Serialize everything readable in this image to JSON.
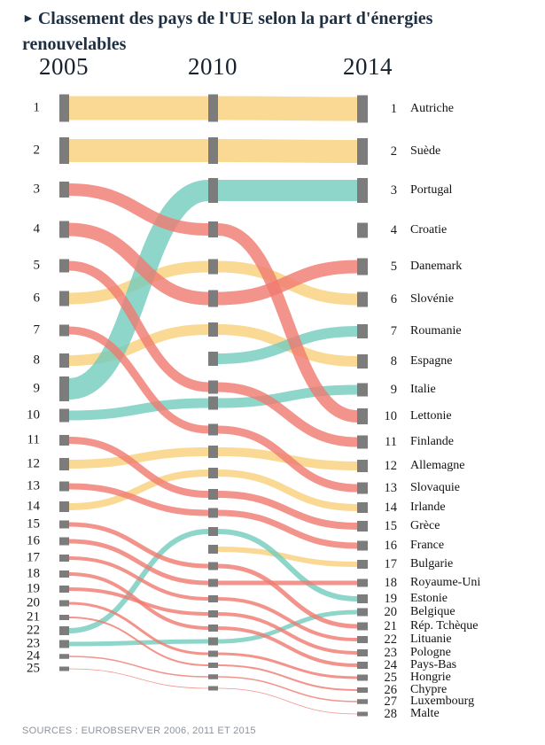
{
  "title": {
    "bullet": "►",
    "text": "Classement des pays de l'UE selon la part d'énergies renouvelables"
  },
  "source": "SOURCES : EUROBSERV'ER 2006, 2011 ET 2015",
  "chart_data": {
    "type": "bump-sankey",
    "columns": [
      {
        "year": "2005",
        "countries_ranked": 25
      },
      {
        "year": "2010",
        "countries_ranked": 27
      },
      {
        "year": "2014",
        "countries_ranked": 28
      }
    ],
    "rank_labels_2005": [
      1,
      2,
      3,
      4,
      5,
      6,
      7,
      8,
      9,
      10,
      11,
      12,
      13,
      14,
      15,
      16,
      17,
      18,
      19,
      20,
      21,
      22,
      23,
      24,
      25
    ],
    "rank_labels_2014": [
      1,
      2,
      3,
      4,
      5,
      6,
      7,
      8,
      9,
      10,
      11,
      12,
      13,
      14,
      15,
      16,
      17,
      18,
      19,
      20,
      21,
      22,
      23,
      24,
      25,
      26,
      27,
      28
    ],
    "colors": {
      "yellow": "#f7cf79",
      "red": "#f0796f",
      "teal": "#72cabd",
      "node": "#7c7c7c"
    },
    "legend_semantics": {
      "yellow": "stable",
      "red": "decline",
      "teal": "rise"
    },
    "countries": [
      {
        "rank_2014": 1,
        "name": "Autriche",
        "rank_2005": 1,
        "rank_2010": 1,
        "color": "yellow",
        "weight": 27
      },
      {
        "rank_2014": 2,
        "name": "Suède",
        "rank_2005": 2,
        "rank_2010": 2,
        "color": "yellow",
        "weight": 26
      },
      {
        "rank_2014": 3,
        "name": "Portugal",
        "rank_2005": 9,
        "rank_2010": 3,
        "color": "teal",
        "weight": 24
      },
      {
        "rank_2014": 4,
        "name": "Croatie",
        "rank_2005": null,
        "rank_2010": null,
        "color": "none",
        "weight": 13
      },
      {
        "rank_2014": 5,
        "name": "Danemark",
        "rank_2005": 4,
        "rank_2010": 6,
        "color": "red",
        "weight": 15
      },
      {
        "rank_2014": 6,
        "name": "Slovénie",
        "rank_2005": 6,
        "rank_2010": 5,
        "color": "yellow",
        "weight": 13
      },
      {
        "rank_2014": 7,
        "name": "Roumanie",
        "rank_2005": null,
        "rank_2010": 8,
        "color": "teal",
        "weight": 12
      },
      {
        "rank_2014": 8,
        "name": "Espagne",
        "rank_2005": 8,
        "rank_2010": 7,
        "color": "yellow",
        "weight": 12
      },
      {
        "rank_2014": 9,
        "name": "Italie",
        "rank_2005": 10,
        "rank_2010": 10,
        "color": "teal",
        "weight": 11
      },
      {
        "rank_2014": 10,
        "name": "Lettonie",
        "rank_2005": 3,
        "rank_2010": 4,
        "color": "red",
        "weight": 14
      },
      {
        "rank_2014": 11,
        "name": "Finlande",
        "rank_2005": 5,
        "rank_2010": 9,
        "color": "red",
        "weight": 11
      },
      {
        "rank_2014": 12,
        "name": "Allemagne",
        "rank_2005": 12,
        "rank_2010": 12,
        "color": "yellow",
        "weight": 10
      },
      {
        "rank_2014": 13,
        "name": "Slovaquie",
        "rank_2005": 7,
        "rank_2010": 11,
        "color": "red",
        "weight": 9
      },
      {
        "rank_2014": 14,
        "name": "Irlande",
        "rank_2005": 14,
        "rank_2010": 13,
        "color": "yellow",
        "weight": 8
      },
      {
        "rank_2014": 15,
        "name": "Grèce",
        "rank_2005": 11,
        "rank_2010": 14,
        "color": "red",
        "weight": 8
      },
      {
        "rank_2014": 16,
        "name": "France",
        "rank_2005": 13,
        "rank_2010": 15,
        "color": "red",
        "weight": 7
      },
      {
        "rank_2014": 17,
        "name": "Bulgarie",
        "rank_2005": null,
        "rank_2010": 17,
        "color": "yellow",
        "weight": 6
      },
      {
        "rank_2014": 18,
        "name": "Royaume-Uni",
        "rank_2005": 16,
        "rank_2010": 19,
        "color": "red",
        "weight": 5
      },
      {
        "rank_2014": 19,
        "name": "Estonie",
        "rank_2005": 22,
        "rank_2010": 16,
        "color": "teal",
        "weight": 6
      },
      {
        "rank_2014": 20,
        "name": "Belgique",
        "rank_2005": 23,
        "rank_2010": 23,
        "color": "teal",
        "weight": 5
      },
      {
        "rank_2014": 21,
        "name": "Rép. Tchèque",
        "rank_2005": 15,
        "rank_2010": 18,
        "color": "red",
        "weight": 5
      },
      {
        "rank_2014": 22,
        "name": "Lituanie",
        "rank_2005": 17,
        "rank_2010": 20,
        "color": "red",
        "weight": 4
      },
      {
        "rank_2014": 23,
        "name": "Pologne",
        "rank_2005": 19,
        "rank_2010": 21,
        "color": "red",
        "weight": 4
      },
      {
        "rank_2014": 24,
        "name": "Pays-Bas",
        "rank_2005": 18,
        "rank_2010": 22,
        "color": "red",
        "weight": 4
      },
      {
        "rank_2014": 25,
        "name": "Hongrie",
        "rank_2005": 20,
        "rank_2010": 24,
        "color": "red",
        "weight": 3
      },
      {
        "rank_2014": 26,
        "name": "Chypre",
        "rank_2005": 21,
        "rank_2010": 25,
        "color": "red",
        "weight": 2
      },
      {
        "rank_2014": 27,
        "name": "Luxembourg",
        "rank_2005": 24,
        "rank_2010": 26,
        "color": "red",
        "weight": 1.5
      },
      {
        "rank_2014": 28,
        "name": "Malte",
        "rank_2005": 25,
        "rank_2010": 27,
        "color": "red",
        "weight": 0.8
      }
    ]
  }
}
